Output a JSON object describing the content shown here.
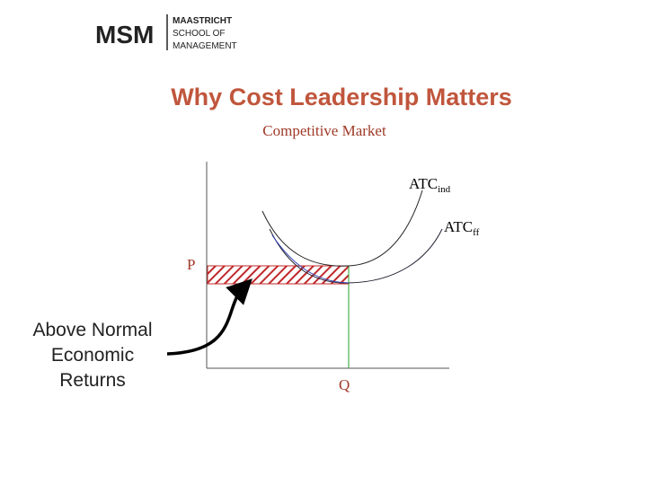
{
  "logo": {
    "short": "MSM",
    "lines": [
      "MAASTRICHT",
      "SCHOOL OF",
      "MANAGEMENT"
    ]
  },
  "title": "Why Cost Leadership Matters",
  "subtitle": "Competitive Market",
  "curves": [
    {
      "label": "ATC",
      "subscript": "ind"
    },
    {
      "label": "ATC",
      "subscript": "ff"
    }
  ],
  "price_label": "P",
  "quantity_label": "Q",
  "annotation": [
    "Above Normal",
    "Economic",
    "Returns"
  ]
}
